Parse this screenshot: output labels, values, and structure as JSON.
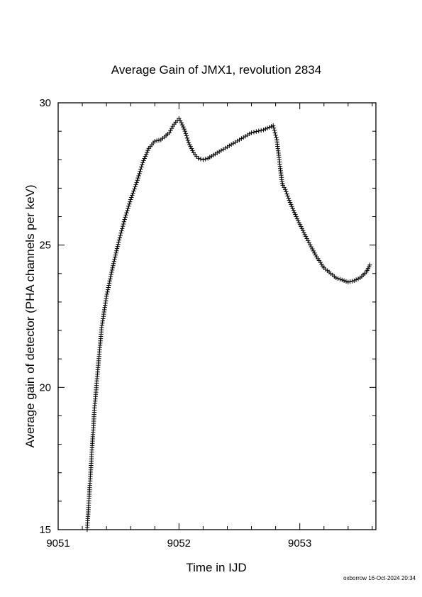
{
  "chart_data": {
    "type": "scatter",
    "title": "Average Gain of JMX1, revolution 2834",
    "xlabel": "Time in IJD",
    "ylabel": "Average gain of detector (PHA channels per keV)",
    "xlim": [
      9051,
      9053.63
    ],
    "ylim": [
      15,
      30
    ],
    "x_ticks": [
      9051,
      9052,
      9053
    ],
    "x_tick_labels": [
      "9051",
      "9052",
      "9053"
    ],
    "y_ticks": [
      15,
      20,
      25,
      30
    ],
    "y_tick_labels": [
      "15",
      "20",
      "25",
      "30"
    ],
    "marker": "+",
    "marker_color": "#000000",
    "grid": false,
    "legend": "none",
    "series": [
      {
        "x": [
          9051.24,
          9051.26,
          9051.28,
          9051.3,
          9051.33,
          9051.36,
          9051.4,
          9051.45,
          9051.5,
          9051.55,
          9051.6,
          9051.65,
          9051.7,
          9051.75,
          9051.8,
          9051.85,
          9051.88,
          9051.92,
          9051.96,
          9052.0,
          9052.02,
          9052.05,
          9052.08,
          9052.12,
          9052.16,
          9052.2,
          9052.24,
          9052.3,
          9052.4,
          9052.5,
          9052.6,
          9052.7,
          9052.78,
          9052.81,
          9052.83,
          9052.85,
          9052.86,
          9052.88,
          9052.92,
          9052.97,
          9053.05,
          9053.13,
          9053.2,
          9053.3,
          9053.4,
          9053.45,
          9053.5,
          9053.55,
          9053.58
        ],
        "y": [
          15.0,
          16.4,
          17.8,
          19.2,
          20.7,
          22.1,
          23.2,
          24.2,
          25.1,
          25.9,
          26.6,
          27.2,
          27.9,
          28.4,
          28.65,
          28.7,
          28.8,
          28.95,
          29.25,
          29.45,
          29.3,
          29.0,
          28.6,
          28.25,
          28.05,
          28.0,
          28.05,
          28.2,
          28.45,
          28.7,
          28.95,
          29.05,
          29.2,
          28.7,
          28.0,
          27.3,
          27.1,
          26.95,
          26.5,
          26.0,
          25.3,
          24.65,
          24.2,
          23.85,
          23.7,
          23.75,
          23.85,
          24.05,
          24.3
        ]
      }
    ]
  },
  "footer": "oxborrow 16-Oct-2024 20:34"
}
